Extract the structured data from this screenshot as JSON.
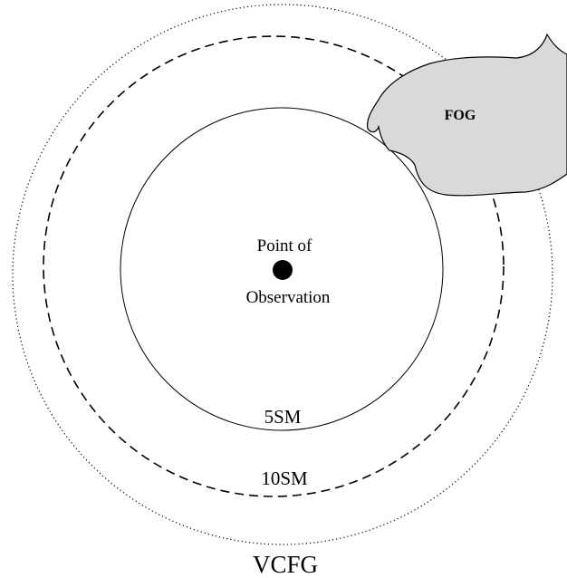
{
  "labels": {
    "center_top": "Point of",
    "center_bottom": "Observation",
    "ring_5": "5SM",
    "ring_10": "10SM",
    "ring_outer": "VCFG",
    "fog": "FOG"
  }
}
